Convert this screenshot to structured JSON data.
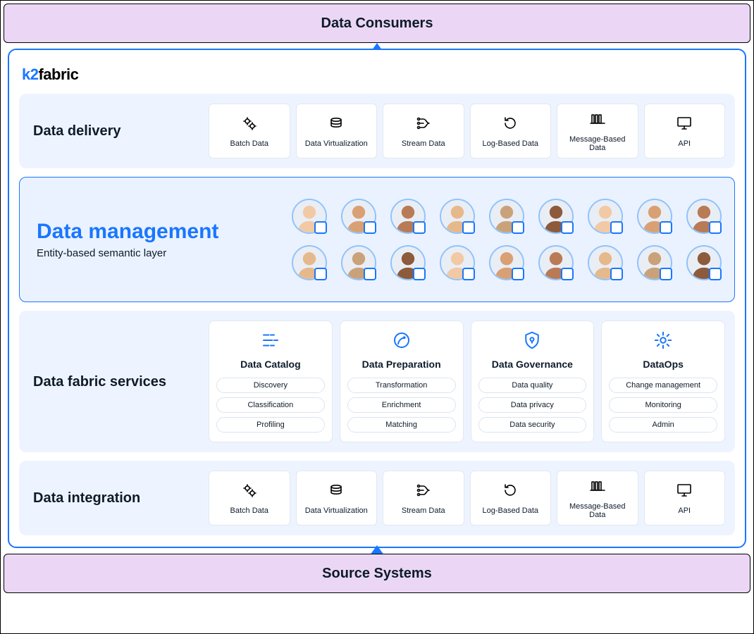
{
  "top_banner": {
    "label": "Data Consumers",
    "bg": "#ebd7f5"
  },
  "bottom_banner": {
    "label": "Source Systems",
    "bg": "#ebd7f5"
  },
  "arrow_color": "#1976ff",
  "main_border_color": "#1976ff",
  "logo": {
    "brand_colored": "k2",
    "brand_plain": "fabric"
  },
  "delivery": {
    "label": "Data delivery",
    "tiles": [
      {
        "label": "Batch Data",
        "icon": "gears"
      },
      {
        "label": "Data Virtualization",
        "icon": "layers"
      },
      {
        "label": "Stream Data",
        "icon": "stream"
      },
      {
        "label": "Log-Based Data",
        "icon": "log"
      },
      {
        "label": "Message-Based Data",
        "icon": "messages"
      },
      {
        "label": "API",
        "icon": "monitor"
      }
    ]
  },
  "data_management": {
    "title": "Data management",
    "subtitle": "Entity-based semantic layer",
    "avatar_count": 18,
    "avatar_border": "#8fc3ff",
    "avatar_badge_border": "#1976ff",
    "highlight_bg": "#eaf2ff",
    "highlight_border": "#1976ff"
  },
  "services": {
    "label": "Data fabric services",
    "cards": [
      {
        "title": "Data Catalog",
        "icon": "catalog",
        "chips": [
          "Discovery",
          "Classification",
          "Profiling"
        ]
      },
      {
        "title": "Data Preparation",
        "icon": "prep",
        "chips": [
          "Transformation",
          "Enrichment",
          "Matching"
        ]
      },
      {
        "title": "Data Governance",
        "icon": "shield",
        "chips": [
          "Data quality",
          "Data privacy",
          "Data security"
        ]
      },
      {
        "title": "DataOps",
        "icon": "ops",
        "chips": [
          "Change management",
          "Monitoring",
          "Admin"
        ]
      }
    ]
  },
  "integration": {
    "label": "Data integration",
    "tiles": [
      {
        "label": "Batch Data",
        "icon": "gears"
      },
      {
        "label": "Data Virtualization",
        "icon": "layers"
      },
      {
        "label": "Stream Data",
        "icon": "stream"
      },
      {
        "label": "Log-Based Data",
        "icon": "log"
      },
      {
        "label": "Message-Based Data",
        "icon": "messages"
      },
      {
        "label": "API",
        "icon": "monitor"
      }
    ]
  },
  "section_bg": "#eef4ff",
  "tile_border": "#e2e8f0",
  "chip_border": "#dbe4f0"
}
